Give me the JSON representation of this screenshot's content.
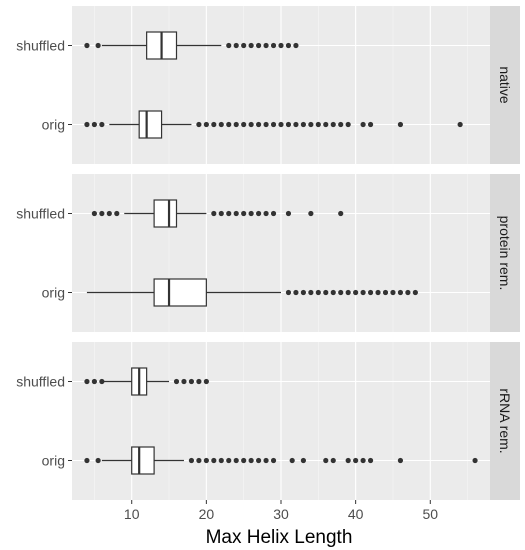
{
  "chart_data": {
    "type": "boxplot",
    "orientation": "horizontal",
    "xlabel": "Max Helix Length",
    "xlim": [
      2,
      58
    ],
    "xticks": [
      10,
      20,
      30,
      40,
      50
    ],
    "xtick_labels": [
      "10",
      "20",
      "30",
      "40",
      "50"
    ],
    "categories": [
      "shuffled",
      "orig"
    ],
    "grid": true,
    "facets": [
      {
        "label": "native",
        "boxes": [
          {
            "name": "shuffled",
            "whisker_low": 6,
            "q1": 12,
            "median": 14,
            "q3": 16,
            "whisker_high": 22,
            "outliers": [
              4,
              5.5,
              23,
              24,
              25,
              26,
              27,
              28,
              29,
              30,
              31,
              32
            ]
          },
          {
            "name": "orig",
            "whisker_low": 7,
            "q1": 11,
            "median": 12,
            "q3": 14,
            "whisker_high": 18,
            "outliers": [
              4,
              5,
              6,
              19,
              20,
              21,
              22,
              23,
              24,
              25,
              26,
              27,
              28,
              29,
              30,
              31,
              32,
              33,
              34,
              35,
              36,
              37,
              38,
              39,
              41,
              42,
              46,
              54
            ]
          }
        ]
      },
      {
        "label": "protein rem.",
        "boxes": [
          {
            "name": "shuffled",
            "whisker_low": 9,
            "q1": 13,
            "median": 15,
            "q3": 16,
            "whisker_high": 20,
            "outliers": [
              5,
              6,
              7,
              8,
              21,
              22,
              23,
              24,
              25,
              26,
              27,
              28,
              29,
              31,
              34,
              38
            ]
          },
          {
            "name": "orig",
            "whisker_low": 4,
            "q1": 13,
            "median": 15,
            "q3": 20,
            "whisker_high": 30,
            "outliers": [
              31,
              32,
              33,
              34,
              35,
              36,
              37,
              38,
              39,
              40,
              41,
              42,
              43,
              44,
              45,
              46,
              47,
              48
            ]
          }
        ]
      },
      {
        "label": "rRNA rem.",
        "boxes": [
          {
            "name": "shuffled",
            "whisker_low": 6,
            "q1": 10,
            "median": 11,
            "q3": 12,
            "whisker_high": 15,
            "outliers": [
              4,
              5,
              6,
              16,
              17,
              18,
              19,
              20
            ]
          },
          {
            "name": "orig",
            "whisker_low": 6,
            "q1": 10,
            "median": 11,
            "q3": 13,
            "whisker_high": 17,
            "outliers": [
              4,
              5.5,
              18,
              19,
              20,
              21,
              22,
              23,
              24,
              25,
              26,
              27,
              28,
              29,
              31.5,
              33,
              36,
              37,
              39,
              40,
              41,
              42,
              46,
              56
            ]
          }
        ]
      }
    ]
  }
}
